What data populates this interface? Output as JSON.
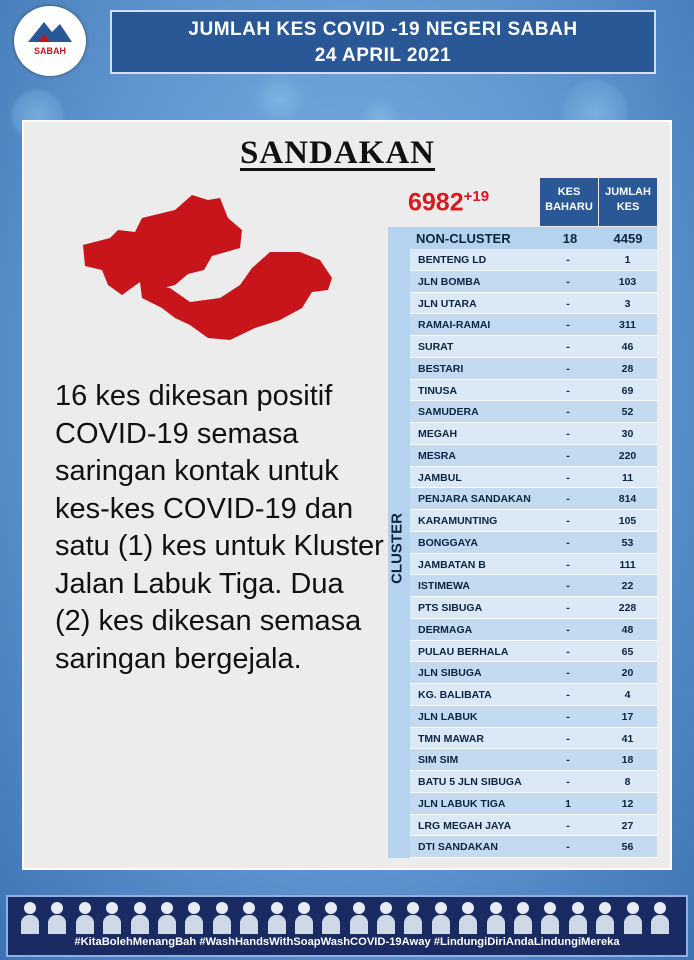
{
  "logo": {
    "text": "SABAH"
  },
  "header": {
    "line1": "JUMLAH KES COVID -19 NEGERI SABAH",
    "line2": "24 APRIL 2021"
  },
  "district": "SANDAKAN",
  "total": {
    "cases": "6982",
    "new": "+19"
  },
  "description": "16 kes dikesan positif COVID-19 semasa saringan kontak untuk kes-kes COVID-19 dan satu (1) kes untuk Kluster Jalan Labuk Tiga. Dua (2) kes dikesan semasa saringan bergejala.",
  "table": {
    "col_new": "KES BAHARU",
    "col_total": "JUMLAH KES",
    "non_cluster": {
      "label": "NON-CLUSTER",
      "new": "18",
      "total": "4459"
    },
    "cluster_label": "CLUSTER",
    "clusters": [
      {
        "name": "BENTENG LD",
        "new": "-",
        "total": "1"
      },
      {
        "name": "JLN BOMBA",
        "new": "-",
        "total": "103"
      },
      {
        "name": "JLN UTARA",
        "new": "-",
        "total": "3"
      },
      {
        "name": "RAMAI-RAMAI",
        "new": "-",
        "total": "311"
      },
      {
        "name": "SURAT",
        "new": "-",
        "total": "46"
      },
      {
        "name": "BESTARI",
        "new": "-",
        "total": "28"
      },
      {
        "name": "TINUSA",
        "new": "-",
        "total": "69"
      },
      {
        "name": "SAMUDERA",
        "new": "-",
        "total": "52"
      },
      {
        "name": "MEGAH",
        "new": "-",
        "total": "30"
      },
      {
        "name": "MESRA",
        "new": "-",
        "total": "220"
      },
      {
        "name": "JAMBUL",
        "new": "-",
        "total": "11"
      },
      {
        "name": "PENJARA SANDAKAN",
        "new": "-",
        "total": "814"
      },
      {
        "name": "KARAMUNTING",
        "new": "-",
        "total": "105"
      },
      {
        "name": "BONGGAYA",
        "new": "-",
        "total": "53"
      },
      {
        "name": "JAMBATAN B",
        "new": "-",
        "total": "111"
      },
      {
        "name": "ISTIMEWA",
        "new": "-",
        "total": "22"
      },
      {
        "name": "PTS SIBUGA",
        "new": "-",
        "total": "228"
      },
      {
        "name": "DERMAGA",
        "new": "-",
        "total": "48"
      },
      {
        "name": "PULAU BERHALA",
        "new": "-",
        "total": "65"
      },
      {
        "name": "JLN SIBUGA",
        "new": "-",
        "total": "20"
      },
      {
        "name": "KG. BALIBATA",
        "new": "-",
        "total": "4"
      },
      {
        "name": "JLN LABUK",
        "new": "-",
        "total": "17"
      },
      {
        "name": "TMN MAWAR",
        "new": "-",
        "total": "41"
      },
      {
        "name": "SIM SIM",
        "new": "-",
        "total": "18"
      },
      {
        "name": "BATU 5 JLN SIBUGA",
        "new": "-",
        "total": "8"
      },
      {
        "name": "JLN LABUK TIGA",
        "new": "1",
        "total": "12"
      },
      {
        "name": "LRG MEGAH JAYA",
        "new": "-",
        "total": "27"
      },
      {
        "name": "DTI SANDAKAN",
        "new": "-",
        "total": "56"
      }
    ]
  },
  "footer": {
    "hashtags": "#KitaBolehMenangBah #WashHandsWithSoapWashCOVID-19Away #LindungiDiriAndaLindungiMereka"
  },
  "colors": {
    "accent": "#2a5796",
    "map": "#c8151b",
    "total": "#d71920"
  }
}
